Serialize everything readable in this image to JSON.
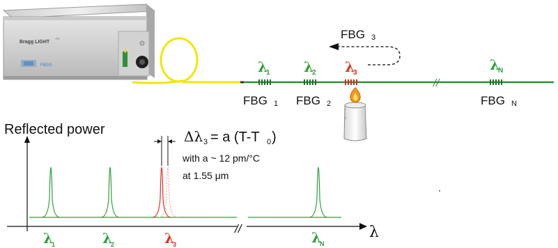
{
  "device": {
    "brand": "Bragg LIGHT",
    "brand_suffix": "FS",
    "company": "FBGS"
  },
  "fiber": {
    "bragg_symbol": "λ",
    "gratings": [
      {
        "sub": "1",
        "label": "FBG",
        "num": "1",
        "color": "#2e9e3a"
      },
      {
        "sub": "2",
        "label": "FBG",
        "num": "2",
        "color": "#2e9e3a"
      },
      {
        "sub": "3",
        "label": "",
        "num": "",
        "color": "#e0301e"
      },
      {
        "sub": "N",
        "label": "FBG",
        "num": "N",
        "color": "#2e9e3a"
      }
    ],
    "shifted_label": "FBG",
    "shifted_num": "3",
    "break_mark": "//"
  },
  "plot": {
    "ylabel": "Reflected power",
    "xlabel": "λ",
    "break_mark": "//",
    "peak_labels": [
      {
        "sym": "λ",
        "sub": "1",
        "color": "#2e9e3a"
      },
      {
        "sym": "λ",
        "sub": "2",
        "color": "#2e9e3a"
      },
      {
        "sym": "λ",
        "sub": "3",
        "color": "#e0301e"
      },
      {
        "sym": "λ",
        "sub": "N",
        "color": "#2e9e3a"
      }
    ]
  },
  "formula": {
    "delta": "Δλ",
    "sub3": "3",
    "rhs": "= a (T-T",
    "sub0": "0",
    "close": ")",
    "line1": "with  a ~ 12 pm/°C",
    "line2": "at 1.55 μm"
  },
  "colors": {
    "green": "#2e9e3a",
    "red": "#e0301e",
    "yellow": "#f2e600",
    "fiber_green": "#2f8f3a"
  }
}
